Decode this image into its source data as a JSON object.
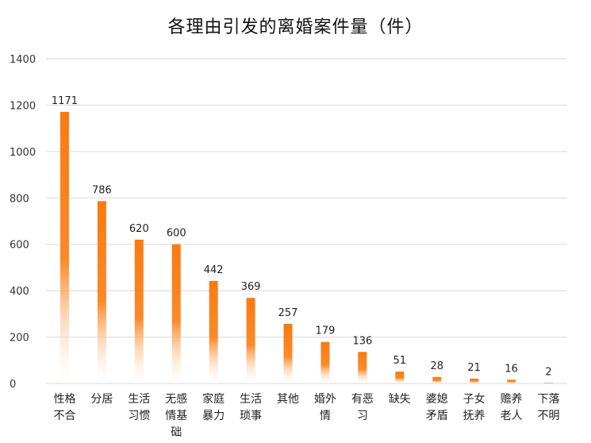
{
  "chart_data": {
    "type": "bar",
    "title": "各理由引发的离婚案件量（件）",
    "categories": [
      [
        "性格",
        "不合"
      ],
      [
        "分居"
      ],
      [
        "生活",
        "习惯"
      ],
      [
        "无感",
        "情基",
        "础"
      ],
      [
        "家庭",
        "暴力"
      ],
      [
        "生活",
        "琐事"
      ],
      [
        "其他"
      ],
      [
        "婚外",
        "情"
      ],
      [
        "有恶",
        "习"
      ],
      [
        "缺失"
      ],
      [
        "婆媳",
        "矛盾"
      ],
      [
        "子女",
        "抚养"
      ],
      [
        "赡养",
        "老人"
      ],
      [
        "下落",
        "不明"
      ]
    ],
    "values": [
      1171,
      786,
      620,
      600,
      442,
      369,
      257,
      179,
      136,
      51,
      28,
      21,
      16,
      2
    ],
    "ylim": [
      0,
      1400
    ],
    "yticks": [
      0,
      200,
      400,
      600,
      800,
      1000,
      1200,
      1400
    ],
    "grid": true,
    "legend": "none",
    "colors": {
      "bar": "#f97a10",
      "bar_fade": "#ffffff",
      "grid": "#d9d9d9"
    }
  }
}
